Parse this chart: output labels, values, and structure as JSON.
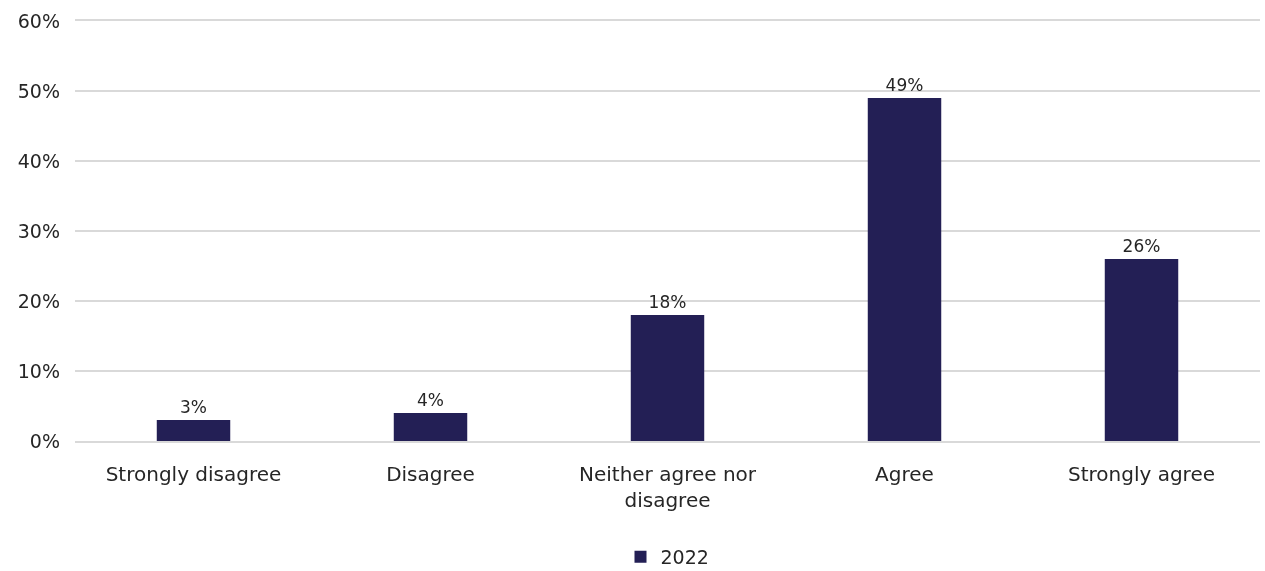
{
  "chart_data": {
    "type": "bar",
    "categories": [
      "Strongly disagree",
      "Disagree",
      "Neither agree nor disagree",
      "Agree",
      "Strongly agree"
    ],
    "series": [
      {
        "name": "2022",
        "color": "#231f55",
        "values": [
          3,
          4,
          18,
          49,
          26
        ],
        "value_labels": [
          "3%",
          "4%",
          "18%",
          "49%",
          "26%"
        ]
      }
    ],
    "ylim": [
      0,
      60
    ],
    "yticks": [
      {
        "value": 0,
        "label": "0%"
      },
      {
        "value": 10,
        "label": "10%"
      },
      {
        "value": 20,
        "label": "20%"
      },
      {
        "value": 30,
        "label": "30%"
      },
      {
        "value": 40,
        "label": "40%"
      },
      {
        "value": 50,
        "label": "50%"
      },
      {
        "value": 60,
        "label": "60%"
      }
    ],
    "grid": "y",
    "legend": "bottom"
  }
}
